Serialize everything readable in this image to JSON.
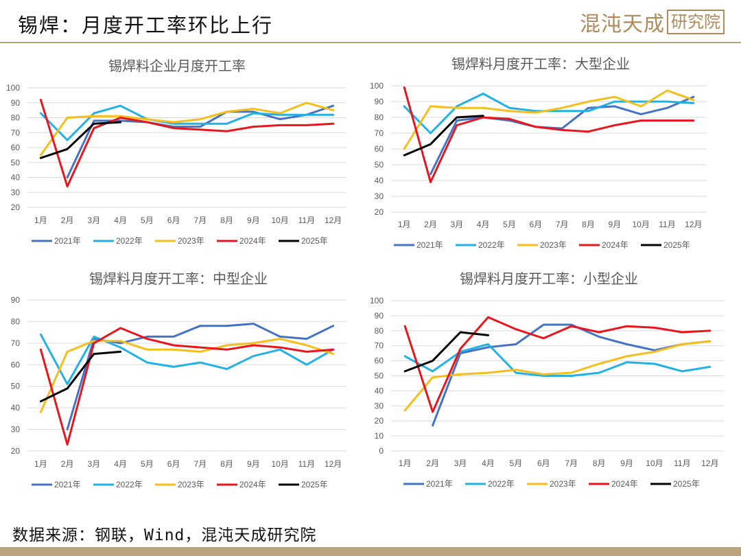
{
  "header": {
    "title": "锡焊：月度开工率环比上行",
    "logo_script": "混沌天成",
    "logo_box": "研究院"
  },
  "footer": {
    "source": "数据来源：钢联，Wind，混沌天成研究院"
  },
  "colors": {
    "2021年": "#4472c4",
    "2022年": "#21b1e4",
    "2023年": "#f5be1a",
    "2024年": "#e8161c",
    "2025年": "#000000",
    "axis": "#d9d9d9",
    "text": "#595959"
  },
  "chart_data": [
    {
      "type": "line",
      "title": "锡焊料企业月度开工率",
      "categories": [
        "1月",
        "2月",
        "3月",
        "4月",
        "5月",
        "6月",
        "7月",
        "8月",
        "9月",
        "10月",
        "11月",
        "12月"
      ],
      "ylim": [
        20,
        100
      ],
      "ytick_step": 10,
      "grid": true,
      "legend": "bottom",
      "series": [
        {
          "name": "2021年",
          "values": [
            null,
            40,
            78,
            78,
            77,
            74,
            74,
            84,
            84,
            79,
            82,
            88
          ]
        },
        {
          "name": "2022年",
          "values": [
            83,
            65,
            83,
            88,
            79,
            76,
            76,
            76,
            83,
            82,
            82,
            82
          ]
        },
        {
          "name": "2023年",
          "values": [
            55,
            80,
            81,
            81,
            79,
            77,
            79,
            84,
            86,
            83,
            90,
            85
          ]
        },
        {
          "name": "2024年",
          "values": [
            92,
            34,
            73,
            80,
            77,
            73,
            72,
            71,
            74,
            75,
            75,
            76
          ]
        },
        {
          "name": "2025年",
          "values": [
            53,
            59,
            76,
            77,
            null,
            null,
            null,
            null,
            null,
            null,
            null,
            null
          ]
        }
      ]
    },
    {
      "type": "line",
      "title": "锡焊料月度开工率：大型企业",
      "categories": [
        "1月",
        "2月",
        "3月",
        "4月",
        "5月",
        "6月",
        "7月",
        "8月",
        "9月",
        "10月",
        "11月",
        "12月"
      ],
      "ylim": [
        20,
        100
      ],
      "ytick_step": 10,
      "grid": true,
      "legend": "bottom",
      "series": [
        {
          "name": "2021年",
          "values": [
            null,
            44,
            78,
            80,
            78,
            74,
            73,
            86,
            87,
            82,
            86,
            93
          ]
        },
        {
          "name": "2022年",
          "values": [
            87,
            70,
            87,
            95,
            86,
            84,
            84,
            84,
            90,
            90,
            90,
            89
          ]
        },
        {
          "name": "2023年",
          "values": [
            60,
            87,
            86,
            86,
            84,
            83,
            86,
            90,
            93,
            87,
            97,
            91
          ]
        },
        {
          "name": "2024年",
          "values": [
            99,
            39,
            75,
            80,
            79,
            74,
            72,
            71,
            75,
            78,
            78,
            78
          ]
        },
        {
          "name": "2025年",
          "values": [
            56,
            63,
            80,
            81,
            null,
            null,
            null,
            null,
            null,
            null,
            null,
            null
          ]
        }
      ]
    },
    {
      "type": "line",
      "title": "锡焊料月度开工率：中型企业",
      "categories": [
        "1月",
        "2月",
        "3月",
        "4月",
        "5月",
        "6月",
        "7月",
        "8月",
        "9月",
        "10月",
        "11月",
        "12月"
      ],
      "ylim": [
        20,
        90
      ],
      "ytick_step": 10,
      "grid": true,
      "legend": "bottom",
      "series": [
        {
          "name": "2021年",
          "values": [
            null,
            30,
            72,
            70,
            73,
            73,
            78,
            78,
            79,
            73,
            72,
            78
          ]
        },
        {
          "name": "2022年",
          "values": [
            74,
            51,
            73,
            68,
            61,
            59,
            61,
            58,
            64,
            67,
            60,
            67
          ]
        },
        {
          "name": "2023年",
          "values": [
            38,
            66,
            71,
            71,
            67,
            67,
            66,
            69,
            70,
            72,
            69,
            65
          ]
        },
        {
          "name": "2024年",
          "values": [
            67,
            23,
            70,
            77,
            72,
            69,
            68,
            67,
            69,
            68,
            66,
            67
          ]
        },
        {
          "name": "2025年",
          "values": [
            43,
            49,
            65,
            66,
            null,
            null,
            null,
            null,
            null,
            null,
            null,
            null
          ]
        }
      ]
    },
    {
      "type": "line",
      "title": "锡焊料月度开工率：小型企业",
      "categories": [
        "1月",
        "2月",
        "3月",
        "4月",
        "5月",
        "6月",
        "7月",
        "8月",
        "9月",
        "10月",
        "11月",
        "12月"
      ],
      "ylim": [
        0,
        100
      ],
      "ytick_step": 10,
      "grid": true,
      "legend": "bottom",
      "series": [
        {
          "name": "2021年",
          "values": [
            null,
            17,
            65,
            69,
            71,
            84,
            84,
            76,
            71,
            67,
            71,
            73
          ]
        },
        {
          "name": "2022年",
          "values": [
            63,
            53,
            66,
            71,
            52,
            50,
            50,
            52,
            59,
            58,
            53,
            56
          ]
        },
        {
          "name": "2023年",
          "values": [
            27,
            49,
            51,
            52,
            54,
            51,
            52,
            58,
            63,
            66,
            71,
            73
          ]
        },
        {
          "name": "2024年",
          "values": [
            83,
            26,
            68,
            89,
            81,
            75,
            83,
            79,
            83,
            82,
            79,
            80
          ]
        },
        {
          "name": "2025年",
          "values": [
            53,
            60,
            79,
            77,
            null,
            null,
            null,
            null,
            null,
            null,
            null,
            null
          ]
        }
      ]
    }
  ]
}
